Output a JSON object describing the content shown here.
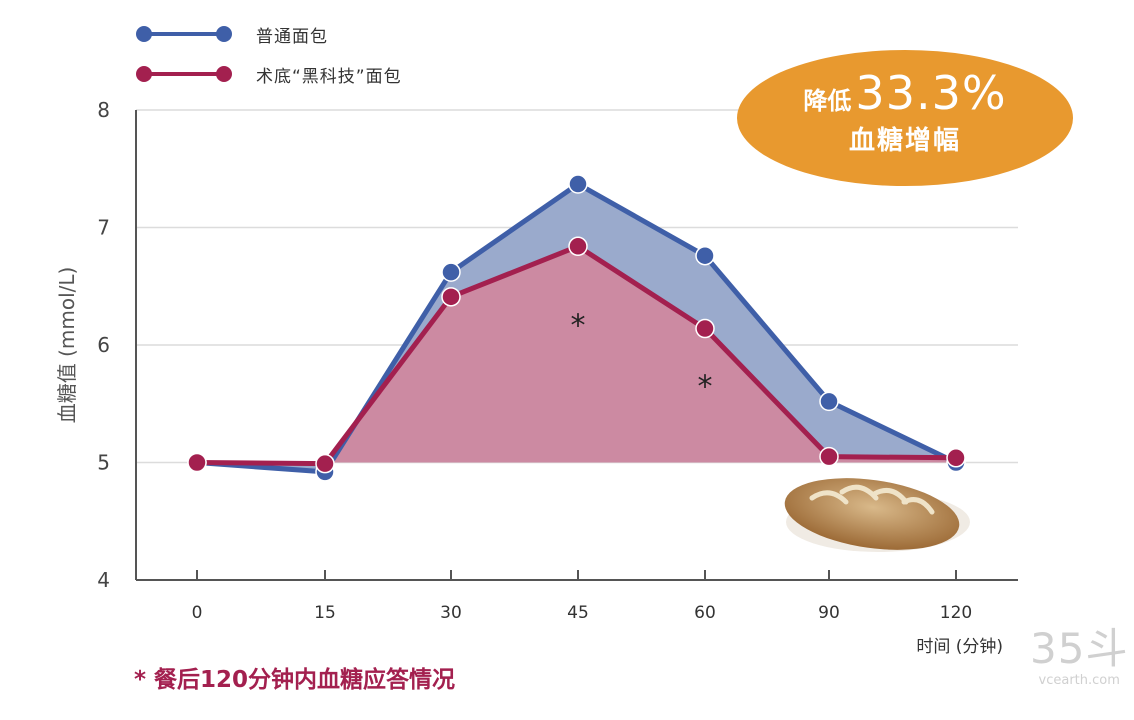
{
  "chart_data": {
    "type": "line",
    "x": [
      "0",
      "15",
      "30",
      "45",
      "60",
      "90",
      "120"
    ],
    "xlabel": "时间 (分钟)",
    "ylabel": "血糖值 (mmol/L)",
    "yticks": [
      "4",
      "5",
      "6",
      "7",
      "8"
    ],
    "ylim": [
      4,
      8
    ],
    "grid": true,
    "legend_position": "top-left",
    "series": [
      {
        "name": "普通面包",
        "color": "#3f5fa8",
        "fill": "#9aaacc",
        "values": [
          5.0,
          4.92,
          6.62,
          7.37,
          6.76,
          5.52,
          5.0
        ]
      },
      {
        "name": "术底“黑科技”面包",
        "color": "#a3204f",
        "fill": "#cc8aa2",
        "values": [
          5.0,
          4.99,
          6.41,
          6.84,
          6.14,
          5.05,
          5.04
        ]
      }
    ],
    "annotations": [
      {
        "text": "*",
        "x": "45",
        "y": 6.2
      },
      {
        "text": "*",
        "x": "60",
        "y": 5.68
      }
    ]
  },
  "badge": {
    "prefix": "降低",
    "value": "33.3%",
    "subtitle": "血糖增幅",
    "color": "#e8992f"
  },
  "footnote": "* 餐后120分钟内血糖应答情况",
  "watermark": {
    "big": "35斗",
    "small": "vcearth.com"
  },
  "image_description_icon": "bread-loaf-icon"
}
